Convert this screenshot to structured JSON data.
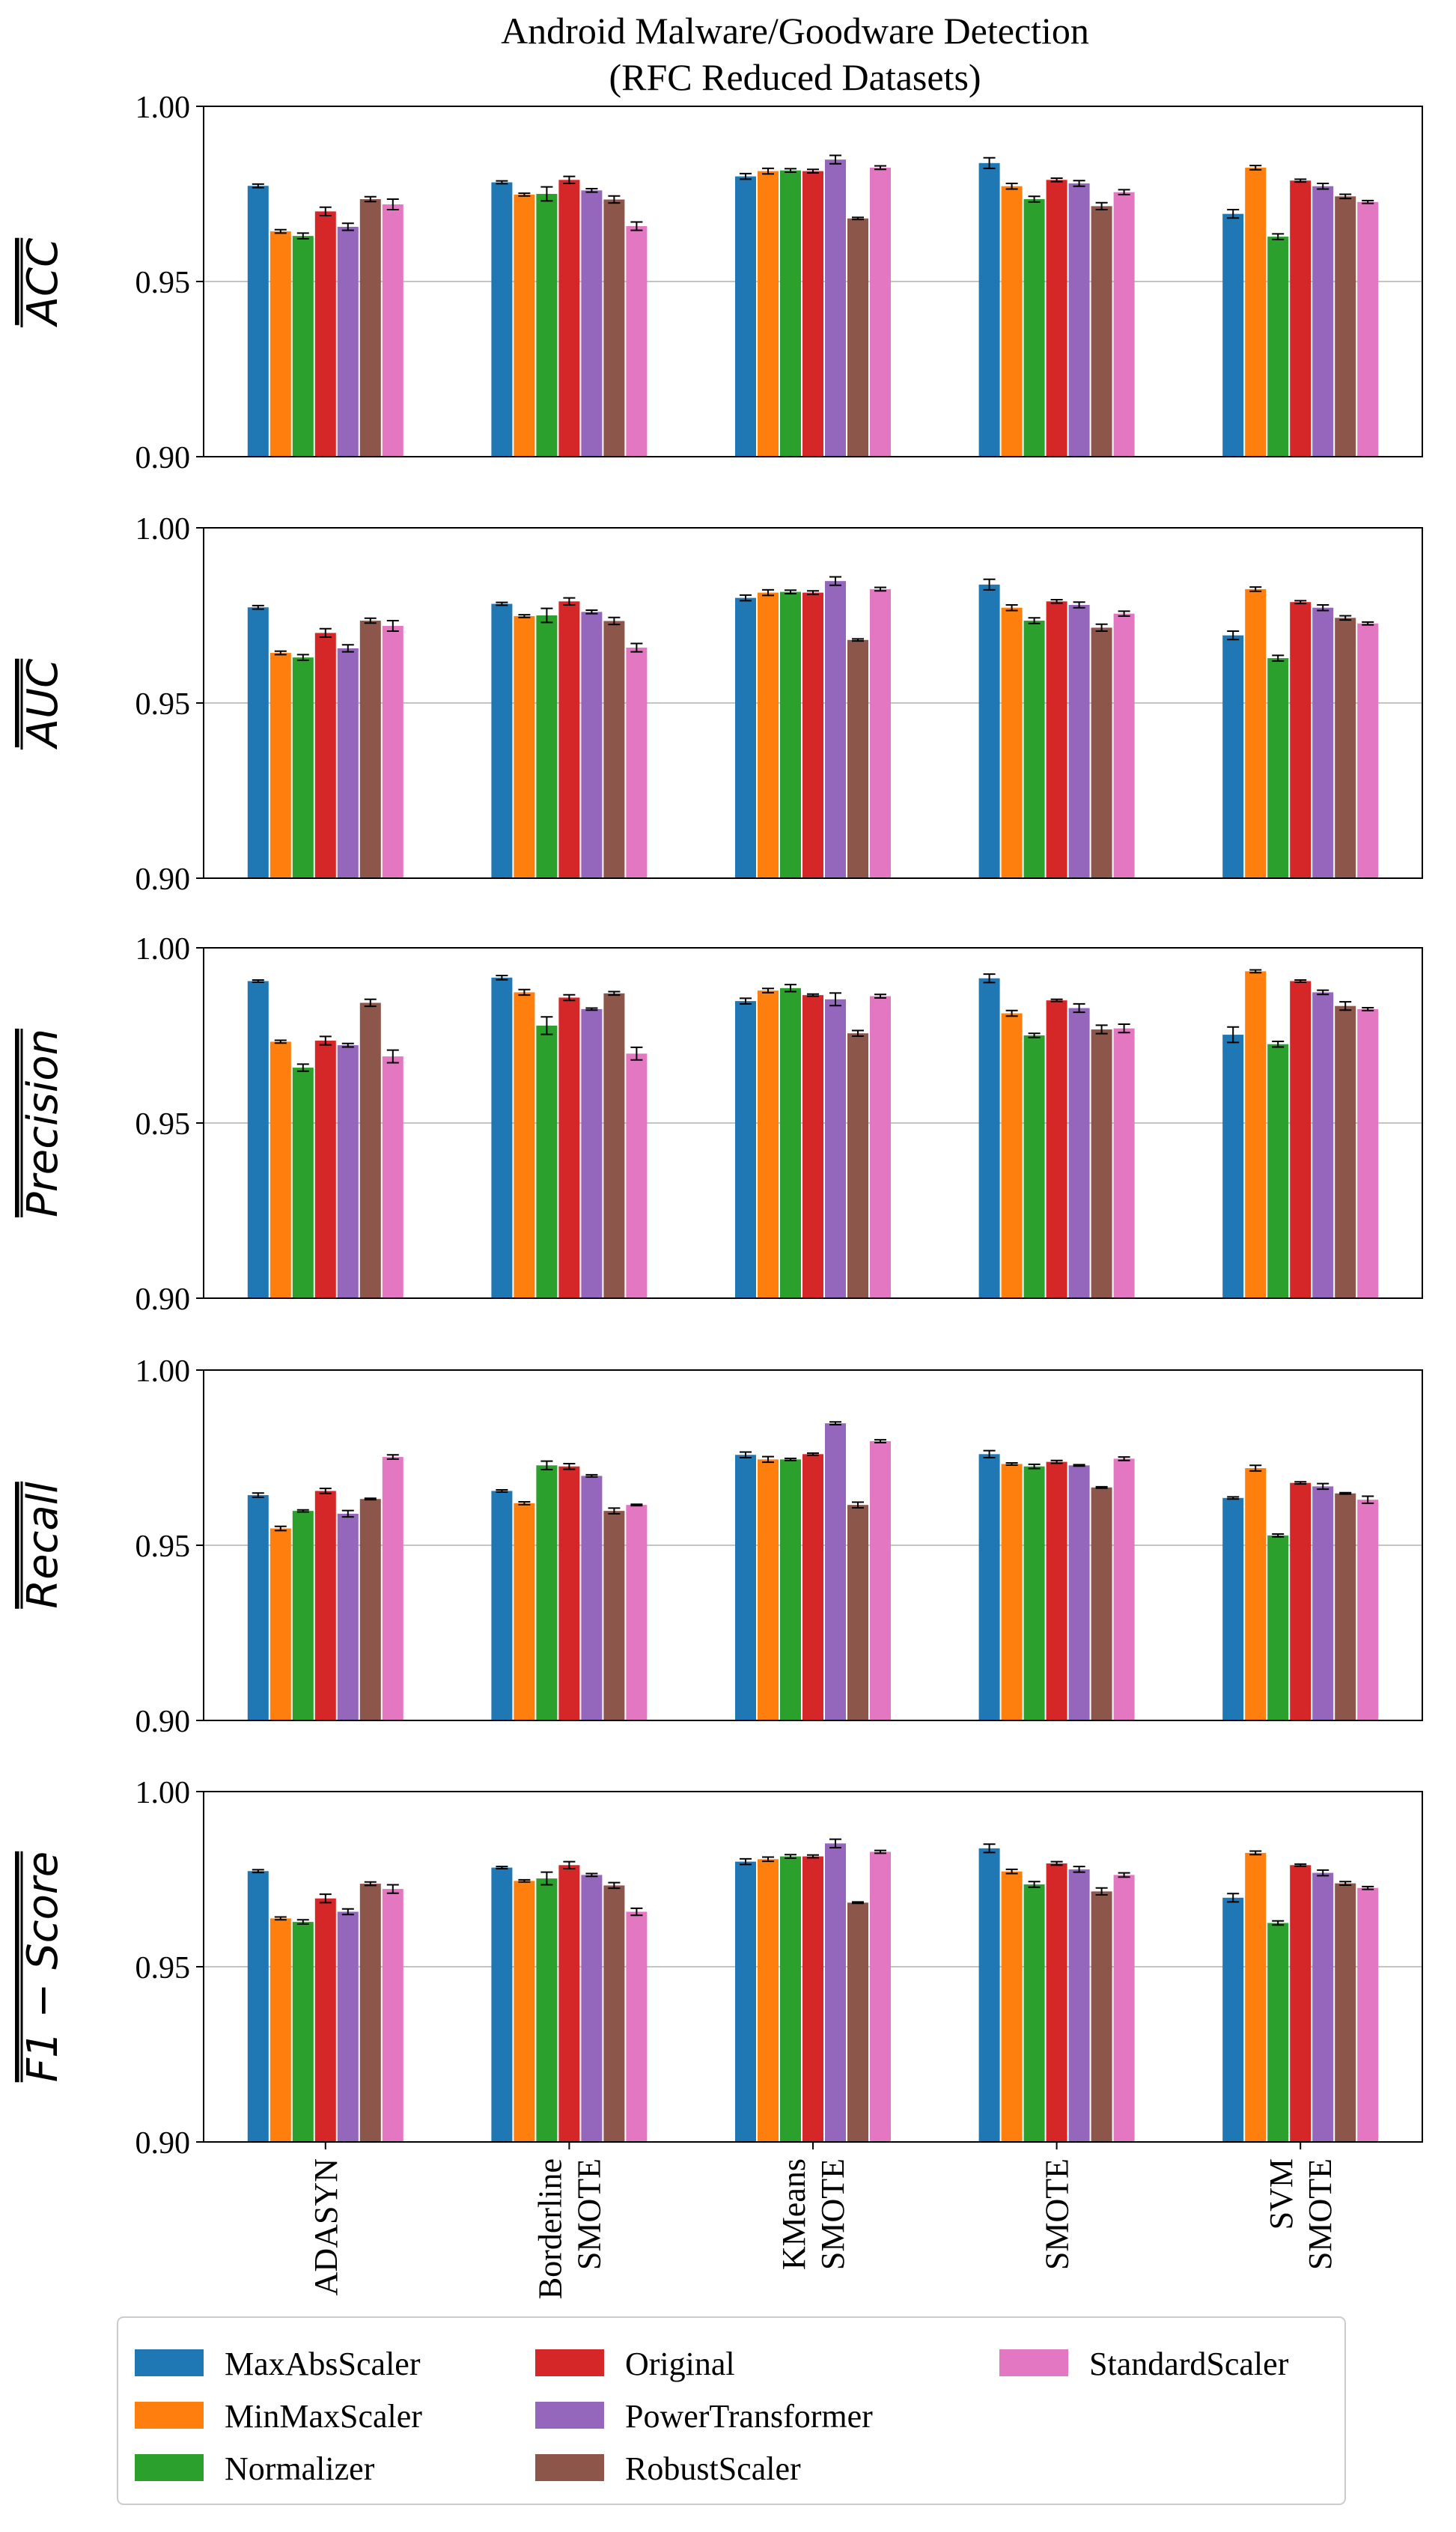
{
  "chart_data": {
    "type": "bar",
    "title_line1": "Android Malware/Goodware Detection",
    "title_line2": "(RFC Reduced Datasets)",
    "categories": [
      "ADASYN",
      "Borderline SMOTE",
      "KMeans SMOTE",
      "SMOTE",
      "SVM SMOTE"
    ],
    "category_lines": [
      [
        "ADASYN"
      ],
      [
        "Borderline",
        "SMOTE"
      ],
      [
        "KMeans",
        "SMOTE"
      ],
      [
        "SMOTE"
      ],
      [
        "SVM",
        "SMOTE"
      ]
    ],
    "series_names": [
      "MaxAbsScaler",
      "MinMaxScaler",
      "Normalizer",
      "Original",
      "PowerTransformer",
      "RobustScaler",
      "StandardScaler"
    ],
    "colors": [
      "#1f77b4",
      "#ff7f0e",
      "#2ca02c",
      "#d62728",
      "#9467bd",
      "#8c564b",
      "#e377c2"
    ],
    "ylim": [
      0.9,
      1.0
    ],
    "yticks": [
      "0.90",
      "0.95",
      "1.00"
    ],
    "grid": "horizontal at 0.95",
    "legend_position": "bottom",
    "panels": [
      {
        "ylabel": "ACC",
        "values": [
          [
            0.9773,
            0.9643,
            0.963,
            0.97,
            0.9656,
            0.9735,
            0.972
          ],
          [
            0.9783,
            0.9748,
            0.975,
            0.979,
            0.976,
            0.9734,
            0.9658
          ],
          [
            0.98,
            0.9815,
            0.9817,
            0.9815,
            0.9848,
            0.968,
            0.9825
          ],
          [
            0.9838,
            0.9772,
            0.9735,
            0.979,
            0.978,
            0.9715,
            0.9755
          ],
          [
            0.9693,
            0.9825,
            0.9628,
            0.9788,
            0.9772,
            0.9743,
            0.9727
          ]
        ],
        "errors": [
          [
            0.0005,
            0.0005,
            0.0008,
            0.0012,
            0.001,
            0.0007,
            0.0015
          ],
          [
            0.0004,
            0.0004,
            0.002,
            0.001,
            0.0005,
            0.001,
            0.0012
          ],
          [
            0.0008,
            0.0008,
            0.0005,
            0.0005,
            0.0012,
            0.0003,
            0.0005
          ],
          [
            0.0015,
            0.0008,
            0.0008,
            0.0005,
            0.0008,
            0.001,
            0.0007
          ],
          [
            0.0012,
            0.0006,
            0.0008,
            0.0004,
            0.0008,
            0.0006,
            0.0004
          ]
        ]
      },
      {
        "ylabel": "AUC",
        "values": [
          [
            0.9773,
            0.9643,
            0.963,
            0.97,
            0.9656,
            0.9735,
            0.972
          ],
          [
            0.9783,
            0.9748,
            0.975,
            0.979,
            0.976,
            0.9734,
            0.9658
          ],
          [
            0.98,
            0.9815,
            0.9817,
            0.9815,
            0.9848,
            0.968,
            0.9825
          ],
          [
            0.9838,
            0.9772,
            0.9735,
            0.979,
            0.978,
            0.9715,
            0.9755
          ],
          [
            0.9693,
            0.9825,
            0.9628,
            0.9788,
            0.9772,
            0.9743,
            0.9727
          ]
        ],
        "errors": [
          [
            0.0005,
            0.0005,
            0.0008,
            0.0012,
            0.001,
            0.0007,
            0.0015
          ],
          [
            0.0004,
            0.0004,
            0.002,
            0.001,
            0.0005,
            0.001,
            0.0012
          ],
          [
            0.0008,
            0.0008,
            0.0005,
            0.0005,
            0.0012,
            0.0003,
            0.0005
          ],
          [
            0.0015,
            0.0008,
            0.0008,
            0.0005,
            0.0008,
            0.001,
            0.0007
          ],
          [
            0.0012,
            0.0006,
            0.0008,
            0.0004,
            0.0008,
            0.0006,
            0.0004
          ]
        ]
      },
      {
        "ylabel": "Precision",
        "values": [
          [
            0.9905,
            0.9732,
            0.9658,
            0.9735,
            0.9722,
            0.9843,
            0.969
          ],
          [
            0.9915,
            0.9873,
            0.9778,
            0.9858,
            0.9825,
            0.987,
            0.9698
          ],
          [
            0.9848,
            0.9878,
            0.9885,
            0.9865,
            0.9853,
            0.9756,
            0.9862
          ],
          [
            0.9913,
            0.9813,
            0.975,
            0.985,
            0.9828,
            0.9767,
            0.977
          ],
          [
            0.9752,
            0.9933,
            0.9725,
            0.9905,
            0.9873,
            0.9834,
            0.9825
          ]
        ],
        "errors": [
          [
            0.0003,
            0.0004,
            0.001,
            0.0012,
            0.0005,
            0.001,
            0.0018
          ],
          [
            0.0006,
            0.0008,
            0.0025,
            0.0008,
            0.0003,
            0.0005,
            0.0018
          ],
          [
            0.0008,
            0.0006,
            0.001,
            0.0003,
            0.0018,
            0.0008,
            0.0005
          ],
          [
            0.0012,
            0.0008,
            0.0006,
            0.0003,
            0.0012,
            0.0012,
            0.0012
          ],
          [
            0.0022,
            0.0004,
            0.0008,
            0.0003,
            0.0006,
            0.0012,
            0.0004
          ]
        ]
      },
      {
        "ylabel": "Recall",
        "values": [
          [
            0.9643,
            0.9548,
            0.9598,
            0.9655,
            0.959,
            0.9632,
            0.9752
          ],
          [
            0.9655,
            0.962,
            0.9728,
            0.9725,
            0.9698,
            0.9598,
            0.9615
          ],
          [
            0.9758,
            0.9745,
            0.9745,
            0.976,
            0.9848,
            0.9615,
            0.9797
          ],
          [
            0.976,
            0.9732,
            0.9725,
            0.9738,
            0.9728,
            0.9665,
            0.9747
          ],
          [
            0.9635,
            0.972,
            0.9528,
            0.9678,
            0.9668,
            0.9648,
            0.963
          ]
        ],
        "errors": [
          [
            0.0006,
            0.0006,
            0.0003,
            0.0007,
            0.0009,
            0.0002,
            0.0006
          ],
          [
            0.0003,
            0.0004,
            0.0012,
            0.0008,
            0.0003,
            0.0008,
            0.0002
          ],
          [
            0.0008,
            0.0008,
            0.0003,
            0.0003,
            0.0004,
            0.0008,
            0.0004
          ],
          [
            0.001,
            0.0003,
            0.0006,
            0.0004,
            0.0002,
            0.0002,
            0.0005
          ],
          [
            0.0003,
            0.0008,
            0.0004,
            0.0003,
            0.0008,
            0.0002,
            0.001
          ]
        ]
      },
      {
        "ylabel": "F1 − Score",
        "values": [
          [
            0.9773,
            0.9638,
            0.9628,
            0.9695,
            0.9657,
            0.9737,
            0.9722
          ],
          [
            0.9783,
            0.9745,
            0.9752,
            0.979,
            0.9762,
            0.9732,
            0.9657
          ],
          [
            0.98,
            0.9807,
            0.9815,
            0.9815,
            0.9852,
            0.9683,
            0.9828
          ],
          [
            0.9838,
            0.9772,
            0.9735,
            0.9795,
            0.9778,
            0.9715,
            0.9762
          ],
          [
            0.9697,
            0.9825,
            0.9625,
            0.979,
            0.9768,
            0.9738,
            0.9725
          ]
        ],
        "errors": [
          [
            0.0004,
            0.0004,
            0.0006,
            0.0012,
            0.0008,
            0.0005,
            0.0012
          ],
          [
            0.0003,
            0.0003,
            0.0018,
            0.001,
            0.0004,
            0.0008,
            0.001
          ],
          [
            0.0008,
            0.0006,
            0.0005,
            0.0004,
            0.0012,
            0.0002,
            0.0004
          ],
          [
            0.0012,
            0.0006,
            0.0008,
            0.0005,
            0.0008,
            0.001,
            0.0006
          ],
          [
            0.0012,
            0.0005,
            0.0006,
            0.0003,
            0.0008,
            0.0005,
            0.0004
          ]
        ]
      }
    ]
  }
}
